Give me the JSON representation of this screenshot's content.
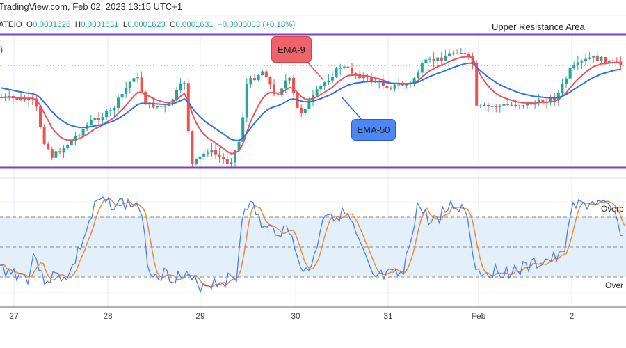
{
  "header": {
    "title": "TradingView.com, Feb 02, 2023 13:15 UTC+1"
  },
  "legend": {
    "symbol": "ATEIO",
    "open_label": "O",
    "open": "0.0001626",
    "high_label": "H",
    "high": "0.0001631",
    "low_label": "L",
    "low": "0.0001623",
    "close_label": "C",
    "close": "0.0001631",
    "change": "+0.0000003 (+0.18%)"
  },
  "annotations": {
    "upper_resistance": "Upper Resistance Area",
    "ema9": "EMA-9",
    "ema50": "EMA-50",
    "overbought": "Overb",
    "oversold": "Over",
    "left_cut": ")"
  },
  "x_axis": {
    "labels": [
      "27",
      "28",
      "29",
      "30",
      "31",
      "Feb",
      "2"
    ]
  },
  "colors": {
    "resistance_line": "#7e3fc8",
    "ema9": "#f0505a",
    "ema50": "#2f6ff0",
    "up_candle": "#26a69a",
    "down_candle": "#ef5350",
    "stoch_k": "#4a7cf0",
    "stoch_d": "#f5882d",
    "band": "#e3f0fc"
  }
}
